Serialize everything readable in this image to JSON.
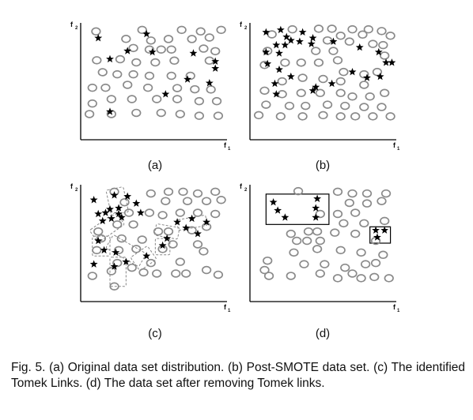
{
  "panels": [
    {
      "label": "(a)",
      "axis_y_label": "f",
      "axis_y_sub": "2",
      "axis_x_label": "f",
      "axis_x_sub": "1",
      "circles": [
        [
          0.105,
          0.073
        ],
        [
          0.42,
          0.06
        ],
        [
          0.69,
          0.06
        ],
        [
          0.82,
          0.073
        ],
        [
          0.96,
          0.06
        ],
        [
          0.31,
          0.137
        ],
        [
          0.48,
          0.151
        ],
        [
          0.6,
          0.138
        ],
        [
          0.76,
          0.138
        ],
        [
          0.88,
          0.125
        ],
        [
          0.36,
          0.215
        ],
        [
          0.47,
          0.228
        ],
        [
          0.55,
          0.228
        ],
        [
          0.62,
          0.228
        ],
        [
          0.84,
          0.22
        ],
        [
          0.92,
          0.242
        ],
        [
          0.11,
          0.32
        ],
        [
          0.27,
          0.311
        ],
        [
          0.38,
          0.338
        ],
        [
          0.51,
          0.338
        ],
        [
          0.64,
          0.323
        ],
        [
          0.88,
          0.323
        ],
        [
          0.15,
          0.422
        ],
        [
          0.25,
          0.44
        ],
        [
          0.36,
          0.44
        ],
        [
          0.47,
          0.453
        ],
        [
          0.62,
          0.453
        ],
        [
          0.75,
          0.453
        ],
        [
          0.08,
          0.555
        ],
        [
          0.17,
          0.555
        ],
        [
          0.32,
          0.53
        ],
        [
          0.46,
          0.555
        ],
        [
          0.66,
          0.558
        ],
        [
          0.78,
          0.568
        ],
        [
          0.89,
          0.57
        ],
        [
          0.08,
          0.69
        ],
        [
          0.21,
          0.652
        ],
        [
          0.35,
          0.652
        ],
        [
          0.52,
          0.652
        ],
        [
          0.66,
          0.652
        ],
        [
          0.81,
          0.67
        ],
        [
          0.93,
          0.67
        ],
        [
          0.06,
          0.78
        ],
        [
          0.21,
          0.78
        ],
        [
          0.38,
          0.77
        ],
        [
          0.55,
          0.77
        ],
        [
          0.68,
          0.78
        ],
        [
          0.81,
          0.795
        ],
        [
          0.94,
          0.795
        ]
      ],
      "stars": [
        [
          0.12,
          0.13
        ],
        [
          0.45,
          0.095
        ],
        [
          0.32,
          0.24
        ],
        [
          0.49,
          0.25
        ],
        [
          0.2,
          0.31
        ],
        [
          0.77,
          0.26
        ],
        [
          0.92,
          0.33
        ],
        [
          0.92,
          0.39
        ],
        [
          0.88,
          0.515
        ],
        [
          0.73,
          0.483
        ],
        [
          0.58,
          0.61
        ],
        [
          0.2,
          0.76
        ]
      ],
      "rect_boxes": [],
      "dash_boxes": []
    },
    {
      "label": "(b)",
      "axis_y_label": "f",
      "axis_y_sub": "2",
      "axis_x_label": "f",
      "axis_x_sub": "1",
      "circles": [
        [
          0.29,
          0.055
        ],
        [
          0.47,
          0.05
        ],
        [
          0.56,
          0.05
        ],
        [
          0.7,
          0.055
        ],
        [
          0.81,
          0.055
        ],
        [
          0.9,
          0.07
        ],
        [
          0.15,
          0.098
        ],
        [
          0.62,
          0.11
        ],
        [
          0.77,
          0.1
        ],
        [
          0.96,
          0.11
        ],
        [
          0.53,
          0.15
        ],
        [
          0.68,
          0.16
        ],
        [
          0.84,
          0.18
        ],
        [
          0.91,
          0.19
        ],
        [
          0.12,
          0.24
        ],
        [
          0.45,
          0.24
        ],
        [
          0.57,
          0.24
        ],
        [
          0.92,
          0.28
        ],
        [
          0.1,
          0.36
        ],
        [
          0.24,
          0.34
        ],
        [
          0.35,
          0.34
        ],
        [
          0.47,
          0.34
        ],
        [
          0.6,
          0.32
        ],
        [
          0.64,
          0.42
        ],
        [
          0.78,
          0.44
        ],
        [
          0.87,
          0.42
        ],
        [
          0.22,
          0.5
        ],
        [
          0.36,
          0.47
        ],
        [
          0.5,
          0.48
        ],
        [
          0.62,
          0.5
        ],
        [
          0.78,
          0.53
        ],
        [
          0.1,
          0.58
        ],
        [
          0.22,
          0.61
        ],
        [
          0.35,
          0.6
        ],
        [
          0.48,
          0.6
        ],
        [
          0.62,
          0.6
        ],
        [
          0.7,
          0.63
        ],
        [
          0.82,
          0.63
        ],
        [
          0.92,
          0.6
        ],
        [
          0.11,
          0.7
        ],
        [
          0.27,
          0.71
        ],
        [
          0.38,
          0.71
        ],
        [
          0.53,
          0.7
        ],
        [
          0.65,
          0.71
        ],
        [
          0.78,
          0.72
        ],
        [
          0.9,
          0.72
        ],
        [
          0.06,
          0.79
        ],
        [
          0.21,
          0.8
        ],
        [
          0.36,
          0.8
        ],
        [
          0.5,
          0.79
        ],
        [
          0.62,
          0.8
        ],
        [
          0.72,
          0.8
        ],
        [
          0.84,
          0.8
        ],
        [
          0.96,
          0.8
        ]
      ],
      "stars": [
        [
          0.11,
          0.08
        ],
        [
          0.21,
          0.06
        ],
        [
          0.36,
          0.08
        ],
        [
          0.25,
          0.12
        ],
        [
          0.43,
          0.13
        ],
        [
          0.18,
          0.19
        ],
        [
          0.24,
          0.19
        ],
        [
          0.28,
          0.15
        ],
        [
          0.34,
          0.16
        ],
        [
          0.11,
          0.25
        ],
        [
          0.2,
          0.26
        ],
        [
          0.42,
          0.18
        ],
        [
          0.57,
          0.16
        ],
        [
          0.75,
          0.21
        ],
        [
          0.88,
          0.25
        ],
        [
          0.93,
          0.34
        ],
        [
          0.97,
          0.34
        ],
        [
          0.12,
          0.35
        ],
        [
          0.2,
          0.4
        ],
        [
          0.7,
          0.42
        ],
        [
          0.28,
          0.46
        ],
        [
          0.17,
          0.52
        ],
        [
          0.8,
          0.47
        ],
        [
          0.89,
          0.46
        ],
        [
          0.18,
          0.61
        ],
        [
          0.45,
          0.55
        ],
        [
          0.56,
          0.52
        ],
        [
          0.43,
          0.58
        ]
      ],
      "rect_boxes": [],
      "dash_boxes": []
    },
    {
      "label": "(c)",
      "axis_y_label": "f",
      "axis_y_sub": "2",
      "axis_x_label": "f",
      "axis_x_sub": "1",
      "circles": [
        [
          0.23,
          0.06
        ],
        [
          0.48,
          0.075
        ],
        [
          0.6,
          0.06
        ],
        [
          0.7,
          0.06
        ],
        [
          0.8,
          0.075
        ],
        [
          0.92,
          0.06
        ],
        [
          0.3,
          0.15
        ],
        [
          0.58,
          0.14
        ],
        [
          0.73,
          0.14
        ],
        [
          0.86,
          0.14
        ],
        [
          0.96,
          0.13
        ],
        [
          0.33,
          0.24
        ],
        [
          0.47,
          0.24
        ],
        [
          0.56,
          0.26
        ],
        [
          0.68,
          0.24
        ],
        [
          0.8,
          0.24
        ],
        [
          0.92,
          0.25
        ],
        [
          0.12,
          0.4
        ],
        [
          0.25,
          0.34
        ],
        [
          0.36,
          0.34
        ],
        [
          0.53,
          0.4
        ],
        [
          0.6,
          0.4
        ],
        [
          0.76,
          0.39
        ],
        [
          0.86,
          0.36
        ],
        [
          0.14,
          0.46
        ],
        [
          0.28,
          0.46
        ],
        [
          0.42,
          0.47
        ],
        [
          0.56,
          0.55
        ],
        [
          0.8,
          0.51
        ],
        [
          0.11,
          0.56
        ],
        [
          0.26,
          0.56
        ],
        [
          0.38,
          0.55
        ],
        [
          0.63,
          0.51
        ],
        [
          0.84,
          0.57
        ],
        [
          0.25,
          0.67
        ],
        [
          0.48,
          0.67
        ],
        [
          0.68,
          0.66
        ],
        [
          0.08,
          0.78
        ],
        [
          0.21,
          0.74
        ],
        [
          0.35,
          0.71
        ],
        [
          0.43,
          0.75
        ],
        [
          0.52,
          0.76
        ],
        [
          0.65,
          0.76
        ],
        [
          0.72,
          0.76
        ],
        [
          0.86,
          0.73
        ],
        [
          0.94,
          0.77
        ],
        [
          0.23,
          0.87
        ]
      ],
      "stars": [
        [
          0.09,
          0.13
        ],
        [
          0.23,
          0.09
        ],
        [
          0.32,
          0.1
        ],
        [
          0.38,
          0.16
        ],
        [
          0.2,
          0.21
        ],
        [
          0.26,
          0.2
        ],
        [
          0.12,
          0.25
        ],
        [
          0.17,
          0.24
        ],
        [
          0.26,
          0.25
        ],
        [
          0.41,
          0.24
        ],
        [
          0.15,
          0.31
        ],
        [
          0.21,
          0.29
        ],
        [
          0.28,
          0.28
        ],
        [
          0.76,
          0.29
        ],
        [
          0.86,
          0.32
        ],
        [
          0.72,
          0.37
        ],
        [
          0.8,
          0.42
        ],
        [
          0.59,
          0.46
        ],
        [
          0.56,
          0.52
        ],
        [
          0.12,
          0.48
        ],
        [
          0.16,
          0.56
        ],
        [
          0.24,
          0.58
        ],
        [
          0.09,
          0.68
        ],
        [
          0.23,
          0.7
        ],
        [
          0.31,
          0.66
        ],
        [
          0.45,
          0.61
        ],
        [
          0.66,
          0.32
        ]
      ],
      "rect_boxes": [],
      "dash_boxes": [
        [
          0.19,
          0.03,
          0.12,
          0.22,
          -12
        ],
        [
          0.07,
          0.3,
          0.22,
          0.13,
          -35
        ],
        [
          0.08,
          0.44,
          0.12,
          0.17,
          0
        ],
        [
          0.18,
          0.5,
          0.26,
          0.13,
          30
        ],
        [
          0.2,
          0.62,
          0.11,
          0.25,
          0
        ],
        [
          0.36,
          0.56,
          0.14,
          0.14,
          -35
        ],
        [
          0.51,
          0.35,
          0.16,
          0.1,
          10
        ],
        [
          0.66,
          0.28,
          0.2,
          0.09,
          -10
        ],
        [
          0.51,
          0.46,
          0.1,
          0.14,
          0
        ]
      ]
    },
    {
      "label": "(d)",
      "axis_y_label": "f",
      "axis_y_sub": "2",
      "axis_x_label": "f",
      "axis_x_sub": "1",
      "circles": [
        [
          0.33,
          0.055
        ],
        [
          0.6,
          0.06
        ],
        [
          0.7,
          0.075
        ],
        [
          0.8,
          0.075
        ],
        [
          0.93,
          0.075
        ],
        [
          0.68,
          0.155
        ],
        [
          0.8,
          0.16
        ],
        [
          0.9,
          0.14
        ],
        [
          0.48,
          0.25
        ],
        [
          0.6,
          0.25
        ],
        [
          0.72,
          0.24
        ],
        [
          0.64,
          0.33
        ],
        [
          0.78,
          0.33
        ],
        [
          0.92,
          0.31
        ],
        [
          0.28,
          0.42
        ],
        [
          0.4,
          0.4
        ],
        [
          0.46,
          0.4
        ],
        [
          0.58,
          0.41
        ],
        [
          0.72,
          0.42
        ],
        [
          0.86,
          0.48
        ],
        [
          0.32,
          0.48
        ],
        [
          0.39,
          0.48
        ],
        [
          0.48,
          0.48
        ],
        [
          0.12,
          0.65
        ],
        [
          0.3,
          0.58
        ],
        [
          0.46,
          0.55
        ],
        [
          0.62,
          0.56
        ],
        [
          0.76,
          0.58
        ],
        [
          0.91,
          0.6
        ],
        [
          0.1,
          0.73
        ],
        [
          0.37,
          0.68
        ],
        [
          0.51,
          0.68
        ],
        [
          0.65,
          0.71
        ],
        [
          0.79,
          0.68
        ],
        [
          0.86,
          0.67
        ],
        [
          0.13,
          0.78
        ],
        [
          0.28,
          0.78
        ],
        [
          0.48,
          0.76
        ],
        [
          0.6,
          0.8
        ],
        [
          0.7,
          0.76
        ],
        [
          0.76,
          0.8
        ],
        [
          0.85,
          0.79
        ],
        [
          0.95,
          0.8
        ]
      ],
      "stars": [
        [
          0.16,
          0.15
        ],
        [
          0.46,
          0.12
        ],
        [
          0.19,
          0.22
        ],
        [
          0.45,
          0.2
        ],
        [
          0.24,
          0.28
        ],
        [
          0.45,
          0.28
        ],
        [
          0.86,
          0.39
        ],
        [
          0.92,
          0.39
        ],
        [
          0.87,
          0.45
        ]
      ],
      "rect_boxes": [
        [
          0.11,
          0.08,
          0.43,
          0.26
        ],
        [
          0.82,
          0.36,
          0.14,
          0.14
        ]
      ],
      "dash_boxes": []
    }
  ],
  "caption": "Fig. 5. (a) Original data set distribution. (b) Post-SMOTE data set. (c) The identified Tomek Links. (d) The data set after removing Tomek links."
}
